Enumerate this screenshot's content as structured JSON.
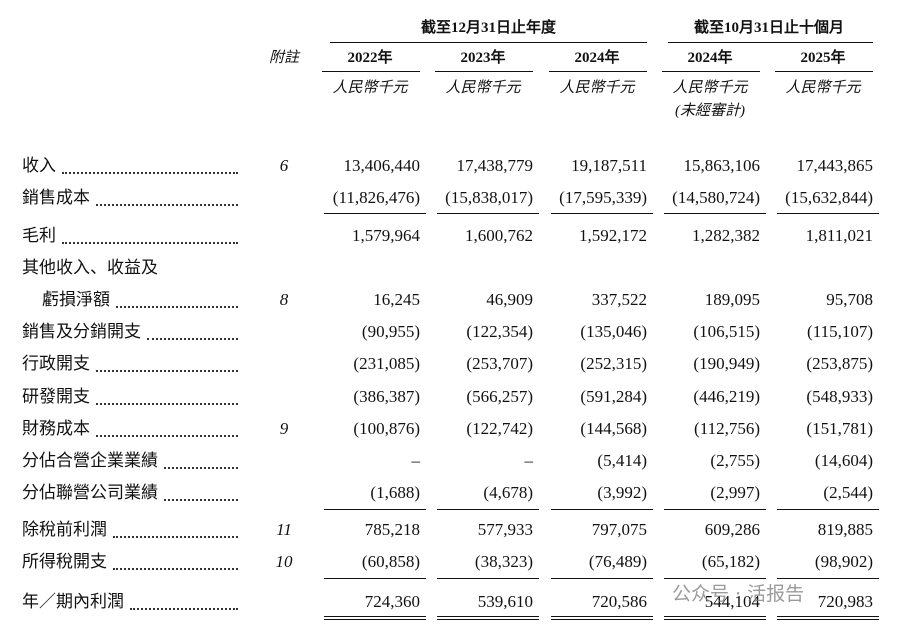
{
  "header": {
    "note_label": "附註",
    "groups": [
      "截至12月31日止年度",
      "截至10月31日止十個月"
    ],
    "years": [
      "2022年",
      "2023年",
      "2024年",
      "2024年",
      "2025年"
    ],
    "units": [
      "人民幣千元",
      "人民幣千元",
      "人民幣千元",
      "人民幣千元",
      "人民幣千元"
    ],
    "unaudited": "(未經審計)"
  },
  "rows": [
    {
      "label": "收入",
      "note": "6",
      "values": [
        "13,406,440",
        "17,438,779",
        "19,187,511",
        "15,863,106",
        "17,443,865"
      ]
    },
    {
      "label": "銷售成本",
      "note": null,
      "values": [
        "(11,826,476)",
        "(15,838,017)",
        "(17,595,339)",
        "(14,580,724)",
        "(15,632,844)"
      ]
    },
    {
      "label": "毛利",
      "note": null,
      "values": [
        "1,579,964",
        "1,600,762",
        "1,592,172",
        "1,282,382",
        "1,811,021"
      ]
    },
    {
      "label": [
        "其他收入、收益及",
        "虧損淨額"
      ],
      "note": "8",
      "values": [
        "16,245",
        "46,909",
        "337,522",
        "189,095",
        "95,708"
      ]
    },
    {
      "label": "銷售及分銷開支",
      "note": null,
      "values": [
        "(90,955)",
        "(122,354)",
        "(135,046)",
        "(106,515)",
        "(115,107)"
      ]
    },
    {
      "label": "行政開支",
      "note": null,
      "values": [
        "(231,085)",
        "(253,707)",
        "(252,315)",
        "(190,949)",
        "(253,875)"
      ]
    },
    {
      "label": "研發開支",
      "note": null,
      "values": [
        "(386,387)",
        "(566,257)",
        "(591,284)",
        "(446,219)",
        "(548,933)"
      ]
    },
    {
      "label": "財務成本",
      "note": "9",
      "values": [
        "(100,876)",
        "(122,742)",
        "(144,568)",
        "(112,756)",
        "(151,781)"
      ]
    },
    {
      "label": "分佔合營企業業績",
      "note": null,
      "values": [
        "–",
        "–",
        "(5,414)",
        "(2,755)",
        "(14,604)"
      ]
    },
    {
      "label": "分佔聯營公司業績",
      "note": null,
      "values": [
        "(1,688)",
        "(4,678)",
        "(3,992)",
        "(2,997)",
        "(2,544)"
      ]
    },
    {
      "label": "除稅前利潤",
      "note": "11",
      "values": [
        "785,218",
        "577,933",
        "797,075",
        "609,286",
        "819,885"
      ]
    },
    {
      "label": "所得稅開支",
      "note": "10",
      "values": [
        "(60,858)",
        "(38,323)",
        "(76,489)",
        "(65,182)",
        "(98,902)"
      ]
    },
    {
      "label": "年／期內利潤",
      "note": null,
      "values": [
        "724,360",
        "539,610",
        "720,586",
        "544,104",
        "720,983"
      ]
    }
  ],
  "watermark": "公众号 · 活报告"
}
